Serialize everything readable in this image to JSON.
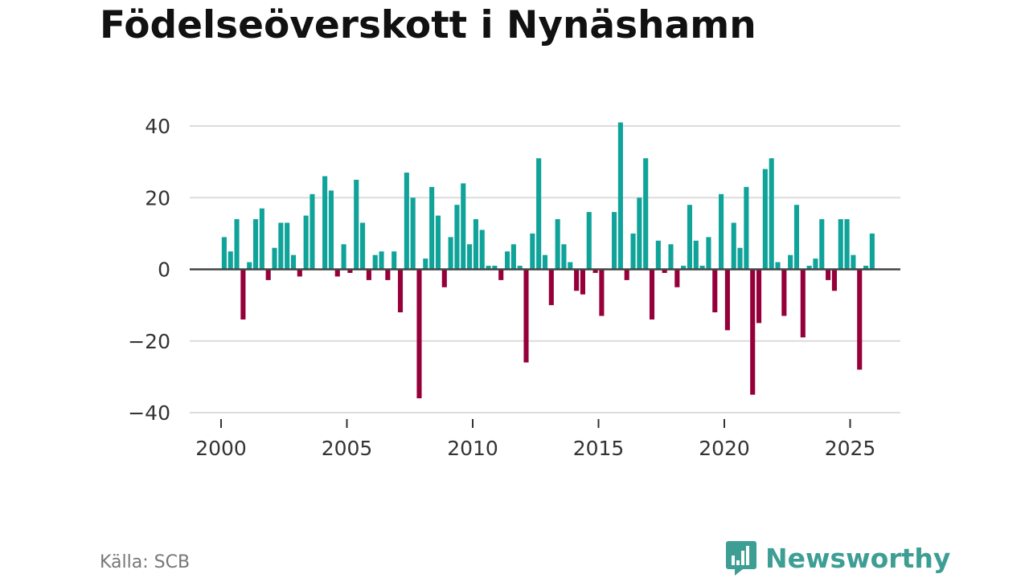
{
  "colors": {
    "positive": "#0fa39a",
    "negative": "#96003a",
    "zero_line": "#444444",
    "grid": "#dcdcdc",
    "brand": "#3d9e94"
  },
  "source": "Källa: SCB",
  "brand": {
    "name": "Newsworthy",
    "icon": "bar-chart-speech-bubble-icon"
  },
  "chart_data": {
    "type": "bar",
    "title": "Födelseöverskott i Nynäshamn",
    "xlabel": "",
    "ylabel": "",
    "ylim": [
      -40,
      40
    ],
    "yticks": [
      -40,
      -20,
      0,
      20,
      40
    ],
    "ytick_labels": [
      "−40",
      "−20",
      "0",
      "20",
      "40"
    ],
    "xticks": [
      2000,
      2005,
      2010,
      2015,
      2020,
      2025
    ],
    "xtick_labels": [
      "2000",
      "2005",
      "2010",
      "2015",
      "2020",
      "2025"
    ],
    "grid": true,
    "frequency": "quarterly",
    "start": "2000-Q1",
    "values": [
      9,
      5,
      14,
      -14,
      2,
      14,
      17,
      -3,
      6,
      13,
      13,
      4,
      -2,
      15,
      21,
      0,
      26,
      22,
      -2,
      7,
      -1,
      25,
      13,
      -3,
      4,
      5,
      -3,
      5,
      -12,
      27,
      20,
      -36,
      3,
      23,
      15,
      -5,
      9,
      18,
      24,
      7,
      14,
      11,
      1,
      1,
      -3,
      5,
      7,
      1,
      -26,
      10,
      31,
      4,
      -10,
      14,
      7,
      2,
      -6,
      -7,
      16,
      -1,
      -13,
      0,
      16,
      41,
      -3,
      10,
      20,
      31,
      -14,
      8,
      -1,
      7,
      -5,
      1,
      18,
      8,
      1,
      9,
      -12,
      21,
      -17,
      13,
      6,
      23,
      -35,
      -15,
      28,
      31,
      2,
      -13,
      4,
      18,
      -19,
      1,
      3,
      14,
      -3,
      -6,
      14,
      14,
      4,
      -28,
      1,
      10
    ]
  }
}
